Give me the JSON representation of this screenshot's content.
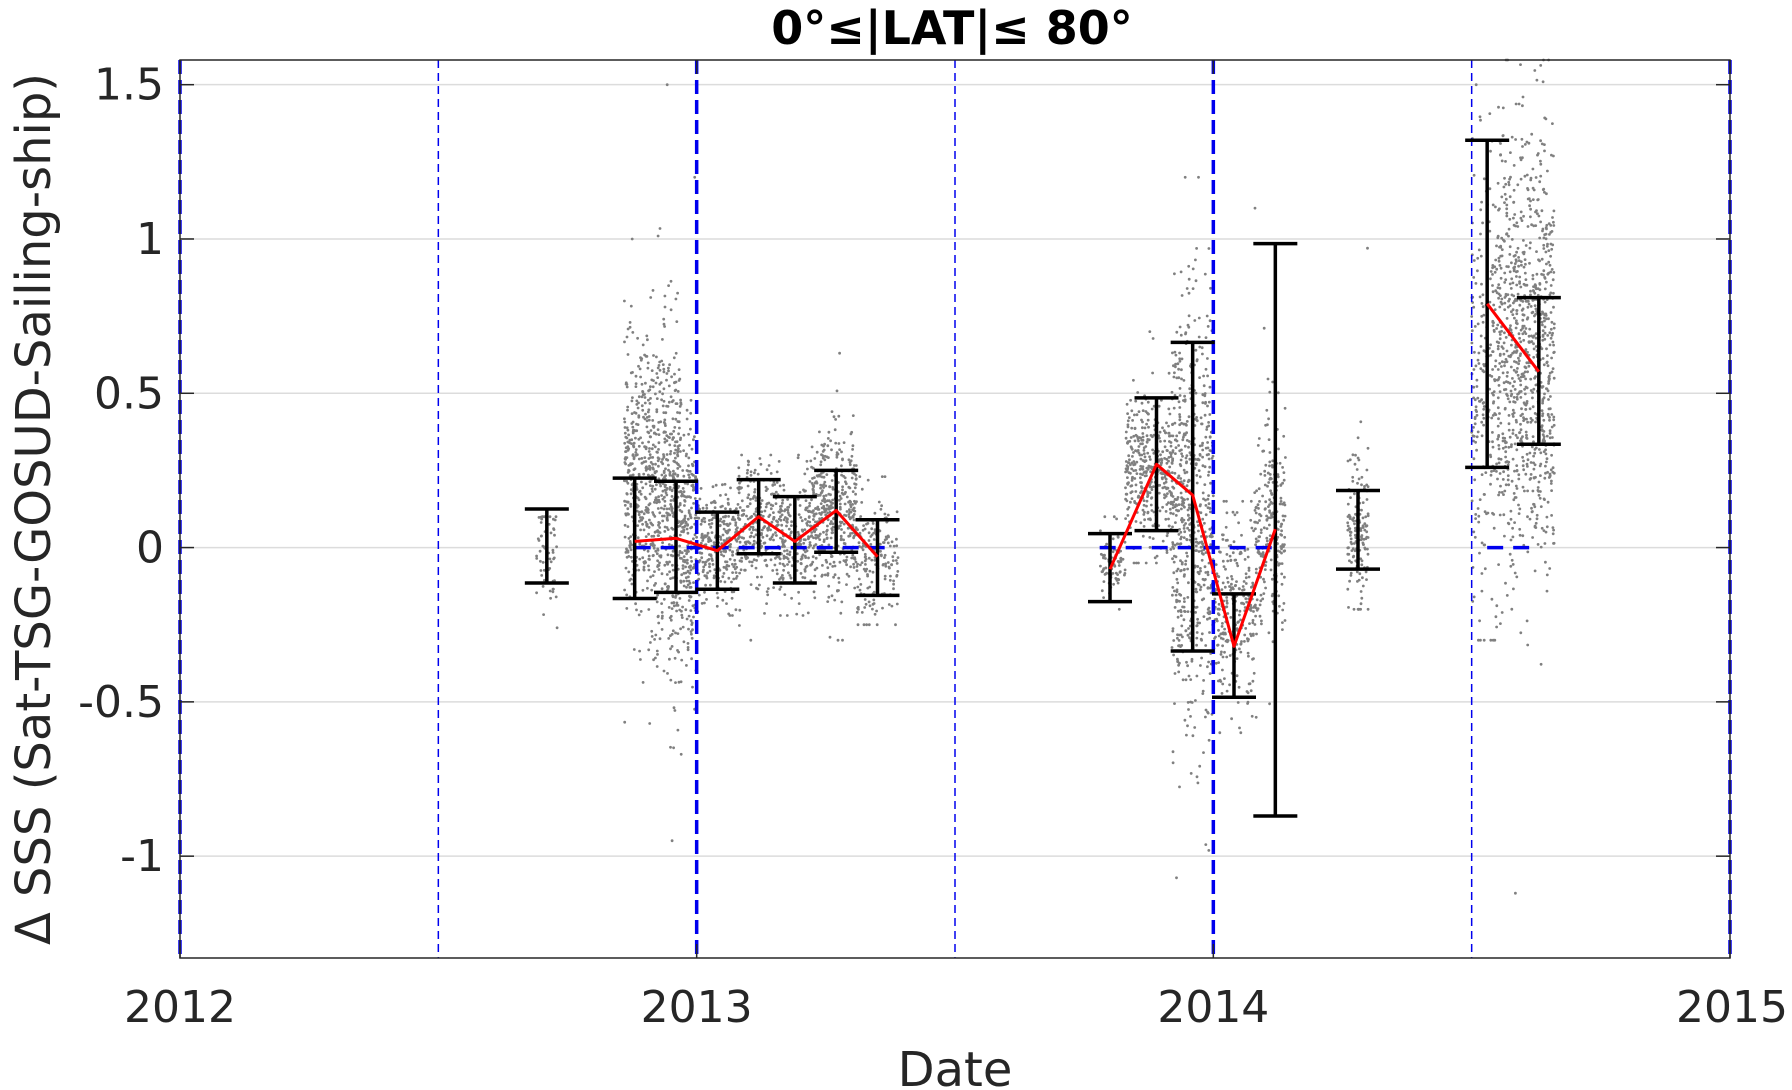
{
  "chart_data": {
    "type": "scatter",
    "title": "0°≤|LAT|≤ 80°",
    "xlabel": "Date",
    "ylabel": "Δ SSS (Sat-TSG-GOSUD-Sailing-ship)",
    "xlim": [
      2012.0,
      2015.0
    ],
    "ylim": [
      -1.33,
      1.58
    ],
    "xticks": [
      {
        "value": 2012,
        "label": "2012"
      },
      {
        "value": 2013,
        "label": "2013"
      },
      {
        "value": 2014,
        "label": "2014"
      },
      {
        "value": 2015,
        "label": "2015"
      }
    ],
    "yticks": [
      {
        "value": 1.5,
        "label": "1.5"
      },
      {
        "value": 1.0,
        "label": "1"
      },
      {
        "value": 0.5,
        "label": "0.5"
      },
      {
        "value": 0.0,
        "label": "0"
      },
      {
        "value": -0.5,
        "label": "-0.5"
      },
      {
        "value": -1.0,
        "label": "-1"
      }
    ],
    "grid": "horizontal",
    "vertical_lines": {
      "color": "#0000ee",
      "thick": [
        2012.0,
        2013.0,
        2014.0,
        2015.0
      ],
      "thin": [
        2012.5,
        2013.5,
        2014.5
      ]
    },
    "zero_reference_segments": [
      {
        "x": [
          2012.88,
          2013.38
        ],
        "y": 0
      },
      {
        "x": [
          2013.78,
          2014.12
        ],
        "y": 0
      },
      {
        "x": [
          2014.53,
          2014.63
        ],
        "y": 0
      }
    ],
    "mean_series": {
      "color": "#ff0000",
      "segments": [
        {
          "x": [
            2012.88,
            2012.96,
            2013.04,
            2013.12,
            2013.19,
            2013.27,
            2013.35
          ],
          "y": [
            0.02,
            0.03,
            -0.01,
            0.1,
            0.02,
            0.12,
            -0.03
          ]
        },
        {
          "x": [
            2013.8,
            2013.89,
            2013.96,
            2014.04,
            2014.12
          ],
          "y": [
            -0.07,
            0.27,
            0.17,
            -0.32,
            0.06
          ]
        },
        {
          "x": [
            2014.53,
            2014.63
          ],
          "y": [
            0.79,
            0.57
          ]
        }
      ]
    },
    "error_bars": {
      "color": "#000000",
      "items": [
        {
          "x": 2012.71,
          "low": -0.115,
          "high": 0.125
        },
        {
          "x": 2012.88,
          "low": -0.165,
          "high": 0.225
        },
        {
          "x": 2012.96,
          "low": -0.145,
          "high": 0.215
        },
        {
          "x": 2013.04,
          "low": -0.135,
          "high": 0.115
        },
        {
          "x": 2013.12,
          "low": -0.02,
          "high": 0.22
        },
        {
          "x": 2013.19,
          "low": -0.115,
          "high": 0.165
        },
        {
          "x": 2013.27,
          "low": -0.015,
          "high": 0.25
        },
        {
          "x": 2013.35,
          "low": -0.155,
          "high": 0.09
        },
        {
          "x": 2013.8,
          "low": -0.175,
          "high": 0.045
        },
        {
          "x": 2013.89,
          "low": 0.055,
          "high": 0.485
        },
        {
          "x": 2013.96,
          "low": -0.335,
          "high": 0.665
        },
        {
          "x": 2014.04,
          "low": -0.485,
          "high": -0.15
        },
        {
          "x": 2014.12,
          "low": -0.87,
          "high": 0.985
        },
        {
          "x": 2014.28,
          "low": -0.07,
          "high": 0.185
        },
        {
          "x": 2014.53,
          "low": 0.26,
          "high": 1.32
        },
        {
          "x": 2014.63,
          "low": 0.335,
          "high": 0.81
        }
      ]
    },
    "raw_points": {
      "color": "#808080",
      "clusters": [
        {
          "x": [
            2012.69,
            2012.73
          ],
          "center": 0.0,
          "spread": 0.09,
          "min": -0.26,
          "max": 0.1,
          "n": 60
        },
        {
          "x": [
            2012.86,
            2012.92
          ],
          "center": 0.2,
          "spread": 0.22,
          "min": -0.57,
          "max": 1.0,
          "n": 420
        },
        {
          "x": [
            2012.92,
            2012.97
          ],
          "center": 0.15,
          "spread": 0.28,
          "min": -0.95,
          "max": 1.5,
          "n": 420
        },
        {
          "x": [
            2012.97,
            2013.0
          ],
          "center": 0.0,
          "spread": 0.2,
          "min": -0.67,
          "max": 1.2,
          "n": 200
        },
        {
          "x": [
            2013.0,
            2013.08
          ],
          "center": 0.0,
          "spread": 0.09,
          "min": -0.22,
          "max": 0.22,
          "n": 260
        },
        {
          "x": [
            2013.08,
            2013.16
          ],
          "center": 0.08,
          "spread": 0.1,
          "min": -0.3,
          "max": 0.3,
          "n": 260
        },
        {
          "x": [
            2013.16,
            2013.22
          ],
          "center": 0.02,
          "spread": 0.1,
          "min": -0.22,
          "max": 0.3,
          "n": 200
        },
        {
          "x": [
            2013.22,
            2013.31
          ],
          "center": 0.1,
          "spread": 0.13,
          "min": -0.3,
          "max": 0.63,
          "n": 420
        },
        {
          "x": [
            2013.31,
            2013.39
          ],
          "center": -0.02,
          "spread": 0.1,
          "min": -0.25,
          "max": 0.23,
          "n": 180
        },
        {
          "x": [
            2013.78,
            2013.83
          ],
          "center": -0.05,
          "spread": 0.06,
          "min": -0.2,
          "max": 0.1,
          "n": 80
        },
        {
          "x": [
            2013.83,
            2013.92
          ],
          "center": 0.25,
          "spread": 0.12,
          "min": -0.05,
          "max": 0.7,
          "n": 380
        },
        {
          "x": [
            2013.92,
            2014.0
          ],
          "center": 0.1,
          "spread": 0.35,
          "min": -1.07,
          "max": 1.2,
          "n": 620
        },
        {
          "x": [
            2014.0,
            2014.08
          ],
          "center": -0.2,
          "spread": 0.15,
          "min": -0.6,
          "max": 0.15,
          "n": 260
        },
        {
          "x": [
            2014.08,
            2014.14
          ],
          "center": 0.05,
          "spread": 0.2,
          "min": -0.55,
          "max": 1.1,
          "n": 240
        },
        {
          "x": [
            2014.26,
            2014.3
          ],
          "center": 0.05,
          "spread": 0.12,
          "min": -0.2,
          "max": 0.97,
          "n": 160
        },
        {
          "x": [
            2014.5,
            2014.55
          ],
          "center": 0.5,
          "spread": 0.35,
          "min": -0.3,
          "max": 1.5,
          "n": 220
        },
        {
          "x": [
            2014.55,
            2014.66
          ],
          "center": 0.65,
          "spread": 0.35,
          "min": -1.12,
          "max": 1.58,
          "n": 900
        }
      ]
    }
  }
}
